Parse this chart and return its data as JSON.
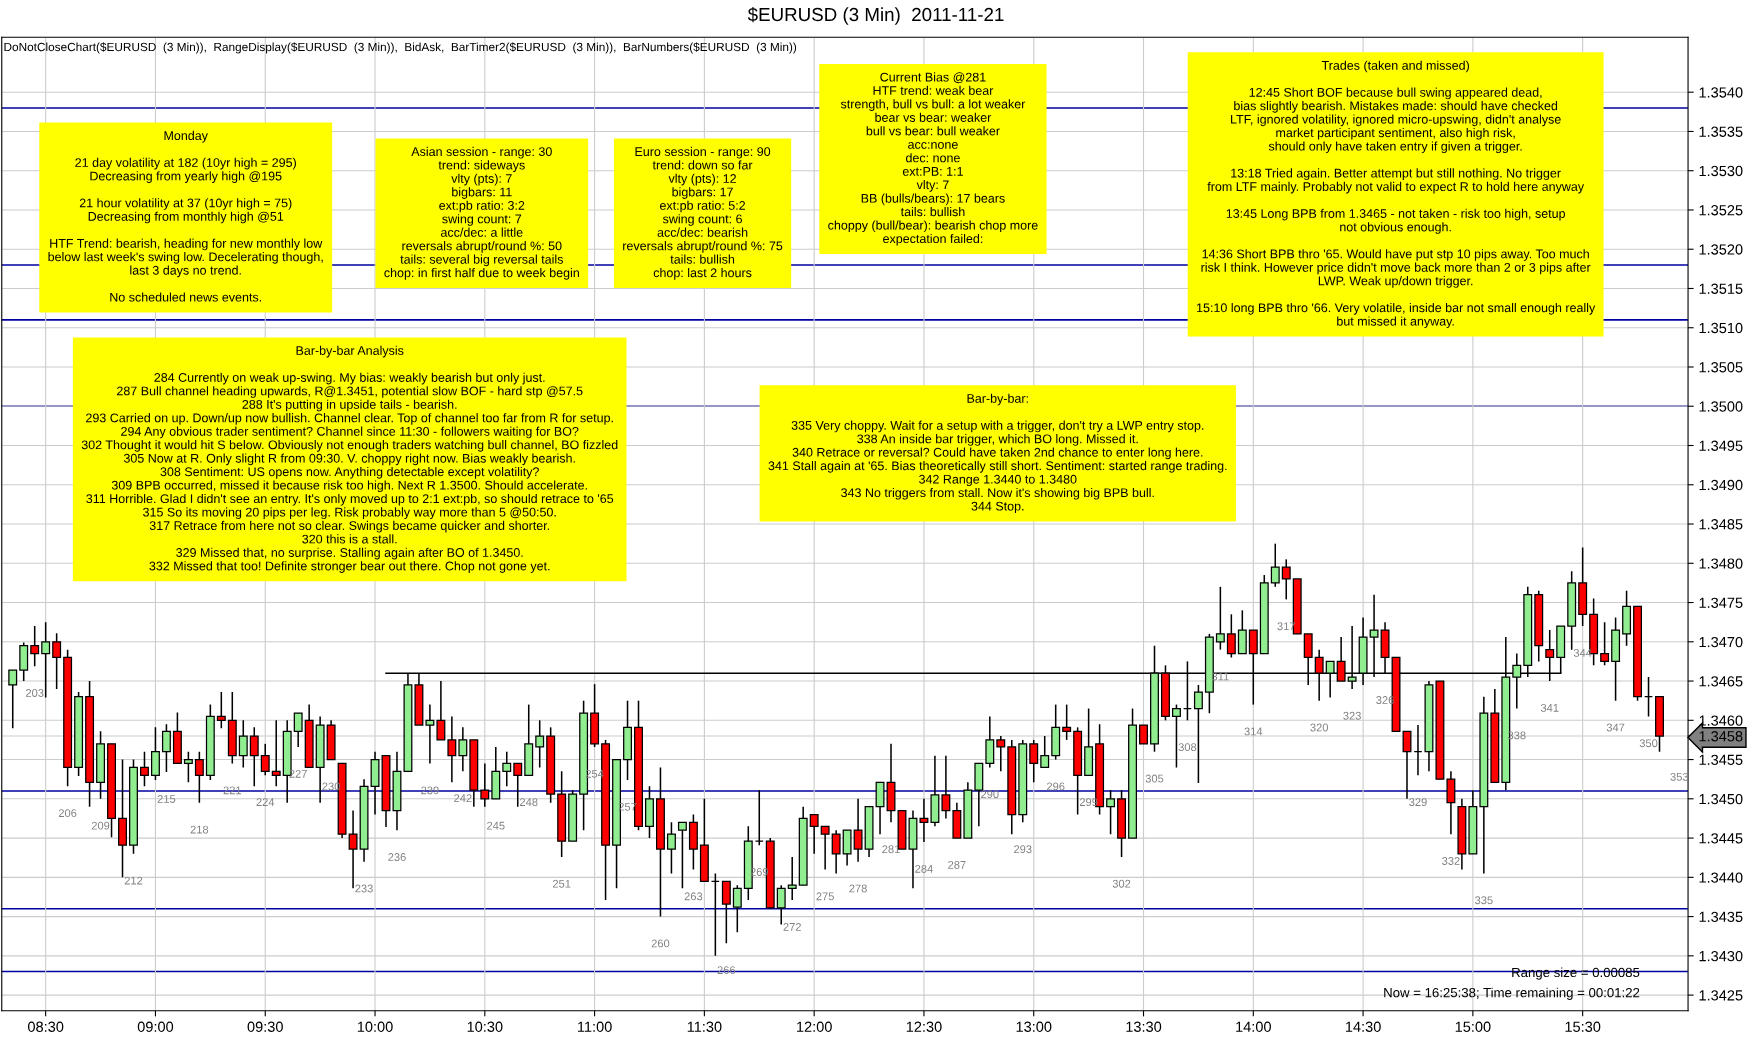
{
  "chart_data": {
    "type": "candlestick",
    "title": "$EURUSD (3 Min)  2011-11-21",
    "xlim": [
      8.3,
      15.98
    ],
    "ylim": [
      1.3423,
      1.3547
    ],
    "grid": true,
    "legend": false,
    "xticks": [
      {
        "value": 8.5,
        "label": "08:30"
      },
      {
        "value": 9.0,
        "label": "09:00"
      },
      {
        "value": 9.5,
        "label": "09:30"
      },
      {
        "value": 10.0,
        "label": "10:00"
      },
      {
        "value": 10.5,
        "label": "10:30"
      },
      {
        "value": 11.0,
        "label": "11:00"
      },
      {
        "value": 11.5,
        "label": "11:30"
      },
      {
        "value": 12.0,
        "label": "12:00"
      },
      {
        "value": 12.5,
        "label": "12:30"
      },
      {
        "value": 13.0,
        "label": "13:00"
      },
      {
        "value": 13.5,
        "label": "13:30"
      },
      {
        "value": 14.0,
        "label": "14:00"
      },
      {
        "value": 14.5,
        "label": "14:30"
      },
      {
        "value": 15.0,
        "label": "15:00"
      },
      {
        "value": 15.5,
        "label": "15:30"
      }
    ],
    "yticks": [
      {
        "value": 1.3425,
        "label": "1.3425"
      },
      {
        "value": 1.343,
        "label": "1.3430"
      },
      {
        "value": 1.3435,
        "label": "1.3435"
      },
      {
        "value": 1.344,
        "label": "1.3440"
      },
      {
        "value": 1.3445,
        "label": "1.3445"
      },
      {
        "value": 1.345,
        "label": "1.3450"
      },
      {
        "value": 1.3455,
        "label": "1.3455"
      },
      {
        "value": 1.3458,
        "label": "1.3458"
      },
      {
        "value": 1.346,
        "label": "1.3460"
      },
      {
        "value": 1.3465,
        "label": "1.3465"
      },
      {
        "value": 1.347,
        "label": "1.3470"
      },
      {
        "value": 1.3475,
        "label": "1.3475"
      },
      {
        "value": 1.348,
        "label": "1.3480"
      },
      {
        "value": 1.3485,
        "label": "1.3485"
      },
      {
        "value": 1.349,
        "label": "1.3490"
      },
      {
        "value": 1.3495,
        "label": "1.3495"
      },
      {
        "value": 1.35,
        "label": "1.3500"
      },
      {
        "value": 1.3505,
        "label": "1.3505"
      },
      {
        "value": 1.351,
        "label": "1.3510"
      },
      {
        "value": 1.3515,
        "label": "1.3515"
      },
      {
        "value": 1.352,
        "label": "1.3520"
      },
      {
        "value": 1.3525,
        "label": "1.3525"
      },
      {
        "value": 1.353,
        "label": "1.3530"
      },
      {
        "value": 1.3535,
        "label": "1.3535"
      },
      {
        "value": 1.354,
        "label": "1.3540"
      }
    ],
    "ref_lines": [
      {
        "axis": "y",
        "value": 1.3538,
        "color": "#0000a0"
      },
      {
        "axis": "y",
        "value": 1.3518,
        "color": "#0000a0"
      },
      {
        "axis": "y",
        "value": 1.3511,
        "color": "#0000a0"
      },
      {
        "axis": "y",
        "value": 1.35,
        "color": "#0000a0"
      },
      {
        "axis": "y",
        "value": 1.3451,
        "color": "#0000a0"
      },
      {
        "axis": "y",
        "value": 1.3436,
        "color": "#0000a0"
      },
      {
        "axis": "y",
        "value": 1.3428,
        "color": "#0000a0"
      }
    ],
    "series": [
      {
        "x": [
          8.35,
          8.4,
          8.45,
          8.5,
          8.55,
          8.6,
          8.65,
          8.7,
          8.75,
          8.8,
          8.85,
          8.9,
          8.95,
          9.0,
          9.05,
          9.1,
          9.15,
          9.2,
          9.25,
          9.3,
          9.35,
          9.4,
          9.45,
          9.5,
          9.55,
          9.6,
          9.65,
          9.7,
          9.75,
          9.8,
          9.85,
          9.9,
          9.95,
          10.0,
          10.05,
          10.1,
          10.15,
          10.2,
          10.25,
          10.3,
          10.35,
          10.4,
          10.45,
          10.5,
          10.55,
          10.6,
          10.65,
          10.7,
          10.75,
          10.8,
          10.85,
          10.9,
          10.95,
          11.0,
          11.05,
          11.1,
          11.15,
          11.2,
          11.25,
          11.3,
          11.35,
          11.4,
          11.45,
          11.5,
          11.55,
          11.6,
          11.65,
          11.7,
          11.75,
          11.8,
          11.85,
          11.9,
          11.95,
          12.0,
          12.05,
          12.1,
          12.15,
          12.2,
          12.25,
          12.3,
          12.35,
          12.4,
          12.45,
          12.5,
          12.55,
          12.6,
          12.65,
          12.7,
          12.75,
          12.8,
          12.85,
          12.9,
          12.95,
          13.0,
          13.05,
          13.1,
          13.15,
          13.2,
          13.25,
          13.3,
          13.35,
          13.4,
          13.45,
          13.5,
          13.55,
          13.6,
          13.65,
          13.7,
          13.75,
          13.8,
          13.85,
          13.9,
          13.95,
          14.0,
          14.05,
          14.1,
          14.15,
          14.2,
          14.25,
          14.3,
          14.35,
          14.4,
          14.45,
          14.5,
          14.55,
          14.6,
          14.65,
          14.7,
          14.75,
          14.8,
          14.85,
          14.9,
          14.95,
          15.0,
          15.05,
          15.1,
          15.15,
          15.2,
          15.25,
          15.3,
          15.35,
          15.4,
          15.45,
          15.5,
          15.55,
          15.6,
          15.65,
          15.7,
          15.75,
          15.8,
          15.85
        ],
        "ohlc": [
          [
            1.34645,
            1.34664,
            1.3459,
            1.34664
          ],
          [
            1.34664,
            1.34699,
            1.3465,
            1.34695
          ],
          [
            1.34695,
            1.3472,
            1.34669,
            1.34685
          ],
          [
            1.34685,
            1.34725,
            1.34629,
            1.347
          ],
          [
            1.347,
            1.34711,
            1.3464,
            1.3468
          ],
          [
            1.3468,
            1.3469,
            1.34516,
            1.3454
          ],
          [
            1.3454,
            1.34636,
            1.34529,
            1.3463
          ],
          [
            1.3463,
            1.3465,
            1.3449,
            1.34521
          ],
          [
            1.34521,
            1.34586,
            1.345,
            1.3457
          ],
          [
            1.3457,
            1.3457,
            1.34451,
            1.34475
          ],
          [
            1.34475,
            1.3455,
            1.344,
            1.34441
          ],
          [
            1.34441,
            1.3455,
            1.3443,
            1.3454
          ],
          [
            1.3454,
            1.3456,
            1.34516,
            1.3453
          ],
          [
            1.3453,
            1.34591,
            1.34524,
            1.3456
          ],
          [
            1.3456,
            1.34595,
            1.34534,
            1.34586
          ],
          [
            1.34586,
            1.3461,
            1.34545,
            1.34545
          ],
          [
            1.34545,
            1.3456,
            1.34521,
            1.3455
          ],
          [
            1.3455,
            1.3456,
            1.34495,
            1.3453
          ],
          [
            1.3453,
            1.3462,
            1.34524,
            1.34605
          ],
          [
            1.34605,
            1.34636,
            1.3459,
            1.346
          ],
          [
            1.346,
            1.34636,
            1.34545,
            1.34555
          ],
          [
            1.34555,
            1.346,
            1.3454,
            1.3458
          ],
          [
            1.3458,
            1.34591,
            1.34516,
            1.34555
          ],
          [
            1.34555,
            1.3457,
            1.3453,
            1.34535
          ],
          [
            1.34535,
            1.346,
            1.34516,
            1.3453
          ],
          [
            1.3453,
            1.346,
            1.34495,
            1.34586
          ],
          [
            1.34586,
            1.34609,
            1.34566,
            1.34609
          ],
          [
            1.346,
            1.3462,
            1.3454,
            1.3454
          ],
          [
            1.3454,
            1.34605,
            1.34495,
            1.34594
          ],
          [
            1.34594,
            1.346,
            1.3455,
            1.3455
          ],
          [
            1.34545,
            1.34545,
            1.3445,
            1.34455
          ],
          [
            1.34455,
            1.34485,
            1.34386,
            1.34436
          ],
          [
            1.34436,
            1.34525,
            1.3442,
            1.34516
          ],
          [
            1.34516,
            1.3456,
            1.3448,
            1.3455
          ],
          [
            1.34555,
            1.34555,
            1.34464,
            1.34485
          ],
          [
            1.34485,
            1.3456,
            1.3446,
            1.34535
          ],
          [
            1.34535,
            1.3466,
            1.34535,
            1.34645
          ],
          [
            1.34645,
            1.3466,
            1.34594,
            1.34594
          ],
          [
            1.34594,
            1.3462,
            1.34545,
            1.346
          ],
          [
            1.346,
            1.3465,
            1.34575,
            1.34575
          ],
          [
            1.34575,
            1.34605,
            1.34521,
            1.34555
          ],
          [
            1.34555,
            1.34591,
            1.34535,
            1.34575
          ],
          [
            1.34575,
            1.34575,
            1.3449,
            1.34511
          ],
          [
            1.34511,
            1.34545,
            1.3449,
            1.345
          ],
          [
            1.345,
            1.34566,
            1.345,
            1.34535
          ],
          [
            1.34535,
            1.3456,
            1.34516,
            1.34545
          ],
          [
            1.34545,
            1.34545,
            1.3449,
            1.3453
          ],
          [
            1.3453,
            1.3462,
            1.3453,
            1.3457
          ],
          [
            1.34566,
            1.346,
            1.3454,
            1.3458
          ],
          [
            1.3458,
            1.34591,
            1.34495,
            1.34506
          ],
          [
            1.34506,
            1.34535,
            1.34426,
            1.34446
          ],
          [
            1.34446,
            1.34511,
            1.34446,
            1.34506
          ],
          [
            1.34506,
            1.34625,
            1.3446,
            1.34609
          ],
          [
            1.34609,
            1.34646,
            1.34566,
            1.3457
          ],
          [
            1.3457,
            1.34575,
            1.34371,
            1.34441
          ],
          [
            1.34441,
            1.3455,
            1.34386,
            1.3455
          ],
          [
            1.3455,
            1.34625,
            1.34524,
            1.34591
          ],
          [
            1.34591,
            1.34625,
            1.3446,
            1.34465
          ],
          [
            1.34465,
            1.34516,
            1.3445,
            1.345
          ],
          [
            1.345,
            1.3454,
            1.3435,
            1.34436
          ],
          [
            1.34436,
            1.3447,
            1.34405,
            1.34455
          ],
          [
            1.3446,
            1.3447,
            1.34386,
            1.3447
          ],
          [
            1.3447,
            1.3448,
            1.3441,
            1.34436
          ],
          [
            1.34441,
            1.345,
            1.34395,
            1.34395
          ],
          [
            1.34395,
            1.34405,
            1.343,
            1.34395
          ],
          [
            1.34395,
            1.34395,
            1.34316,
            1.34366
          ],
          [
            1.34362,
            1.3439,
            1.3433,
            1.34386
          ],
          [
            1.34386,
            1.34465,
            1.34371,
            1.34446
          ],
          [
            1.34446,
            1.34511,
            1.34441,
            1.34446
          ],
          [
            1.34446,
            1.3445,
            1.34361,
            1.34361
          ],
          [
            1.34361,
            1.3439,
            1.3434,
            1.34386
          ],
          [
            1.34386,
            1.34426,
            1.34371,
            1.3439
          ],
          [
            1.3439,
            1.3449,
            1.3439,
            1.34475
          ],
          [
            1.3448,
            1.3448,
            1.3443,
            1.34465
          ],
          [
            1.34465,
            1.34465,
            1.3441,
            1.34455
          ],
          [
            1.34455,
            1.3446,
            1.34405,
            1.3443
          ],
          [
            1.3443,
            1.3446,
            1.34415,
            1.3446
          ],
          [
            1.3446,
            1.345,
            1.3442,
            1.34436
          ],
          [
            1.34436,
            1.3449,
            1.34426,
            1.3449
          ],
          [
            1.3449,
            1.34521,
            1.34455,
            1.34521
          ],
          [
            1.34521,
            1.3457,
            1.3447,
            1.34485
          ],
          [
            1.34485,
            1.34485,
            1.34436,
            1.34436
          ],
          [
            1.34436,
            1.34485,
            1.34386,
            1.34475
          ],
          [
            1.34475,
            1.345,
            1.34445,
            1.3447
          ],
          [
            1.3447,
            1.34555,
            1.34465,
            1.34505
          ],
          [
            1.34505,
            1.34555,
            1.34475,
            1.34485
          ],
          [
            1.34485,
            1.34495,
            1.3445,
            1.3445
          ],
          [
            1.3445,
            1.34521,
            1.3445,
            1.34511
          ],
          [
            1.34511,
            1.34545,
            1.34465,
            1.34545
          ],
          [
            1.34545,
            1.34605,
            1.3454,
            1.34575
          ],
          [
            1.34575,
            1.3458,
            1.34535,
            1.34566
          ],
          [
            1.34566,
            1.34575,
            1.34455,
            1.3448
          ],
          [
            1.3448,
            1.34575,
            1.3447,
            1.3457
          ],
          [
            1.3457,
            1.34575,
            1.34521,
            1.34545
          ],
          [
            1.3454,
            1.3458,
            1.3454,
            1.34555
          ],
          [
            1.34555,
            1.3462,
            1.3455,
            1.34591
          ],
          [
            1.34591,
            1.3462,
            1.34575,
            1.34586
          ],
          [
            1.34586,
            1.34591,
            1.3448,
            1.3453
          ],
          [
            1.3453,
            1.34615,
            1.3453,
            1.34566
          ],
          [
            1.3457,
            1.34595,
            1.3448,
            1.3449
          ],
          [
            1.3449,
            1.34511,
            1.34455,
            1.345
          ],
          [
            1.345,
            1.34511,
            1.34426,
            1.3445
          ],
          [
            1.3445,
            1.34615,
            1.3445,
            1.34594
          ],
          [
            1.34594,
            1.34594,
            1.3457,
            1.3457
          ],
          [
            1.3457,
            1.34695,
            1.3456,
            1.3466
          ],
          [
            1.3466,
            1.3467,
            1.346,
            1.34605
          ],
          [
            1.34605,
            1.3462,
            1.3454,
            1.34615
          ],
          [
            1.34615,
            1.34675,
            1.346,
            1.34615
          ],
          [
            1.34615,
            1.34645,
            1.3452,
            1.34636
          ],
          [
            1.34636,
            1.3471,
            1.34609,
            1.34706
          ],
          [
            1.347,
            1.3477,
            1.3469,
            1.3471
          ],
          [
            1.3471,
            1.34735,
            1.3468,
            1.34685
          ],
          [
            1.34685,
            1.3474,
            1.34685,
            1.34715
          ],
          [
            1.34715,
            1.34715,
            1.3462,
            1.34685
          ],
          [
            1.34685,
            1.34785,
            1.34685,
            1.34775
          ],
          [
            1.34775,
            1.34825,
            1.3477,
            1.34795
          ],
          [
            1.34795,
            1.34805,
            1.34754,
            1.3478
          ],
          [
            1.3478,
            1.3478,
            1.3471,
            1.3471
          ],
          [
            1.3471,
            1.3471,
            1.34645,
            1.3468
          ],
          [
            1.3468,
            1.3469,
            1.34625,
            1.3466
          ],
          [
            1.3466,
            1.34675,
            1.34629,
            1.34675
          ],
          [
            1.34675,
            1.34706,
            1.3465,
            1.3465
          ],
          [
            1.3465,
            1.3472,
            1.3464,
            1.34655
          ],
          [
            1.3466,
            1.34731,
            1.34645,
            1.34706
          ],
          [
            1.34706,
            1.3476,
            1.34655,
            1.34715
          ],
          [
            1.34715,
            1.34725,
            1.3466,
            1.3468
          ],
          [
            1.3468,
            1.3468,
            1.34586,
            1.34586
          ],
          [
            1.34586,
            1.34586,
            1.345,
            1.3456
          ],
          [
            1.3456,
            1.34594,
            1.3453,
            1.3456
          ],
          [
            1.3456,
            1.3465,
            1.34535,
            1.34645
          ],
          [
            1.3465,
            1.3465,
            1.34525,
            1.34525
          ],
          [
            1.34525,
            1.34535,
            1.34455,
            1.34495
          ],
          [
            1.3449,
            1.345,
            1.3441,
            1.3443
          ],
          [
            1.3443,
            1.34511,
            1.3443,
            1.3449
          ],
          [
            1.3449,
            1.3463,
            1.34405,
            1.34609
          ],
          [
            1.34609,
            1.3464,
            1.34521,
            1.34521
          ],
          [
            1.34521,
            1.34706,
            1.34511,
            1.34655
          ],
          [
            1.34655,
            1.34685,
            1.34615,
            1.3467
          ],
          [
            1.3467,
            1.3477,
            1.34655,
            1.3476
          ],
          [
            1.3476,
            1.34765,
            1.34675,
            1.34695
          ],
          [
            1.3469,
            1.34715,
            1.3465,
            1.3468
          ],
          [
            1.3468,
            1.3472,
            1.3466,
            1.3472
          ],
          [
            1.3472,
            1.3479,
            1.3469,
            1.34775
          ],
          [
            1.34775,
            1.3482,
            1.3472,
            1.34735
          ],
          [
            1.34735,
            1.34755,
            1.3467,
            1.34685
          ],
          [
            1.34685,
            1.34725,
            1.3467,
            1.34675
          ],
          [
            1.34675,
            1.34731,
            1.34625,
            1.34715
          ],
          [
            1.3471,
            1.34765,
            1.34695,
            1.34745
          ],
          [
            1.34745,
            1.34745,
            1.34625,
            1.3463
          ],
          [
            1.3463,
            1.34655,
            1.34605,
            1.3463
          ],
          [
            1.3463,
            1.3463,
            1.3456,
            1.3458
          ]
        ],
        "colors": [
          "#90ee90",
          "#90ee90",
          "#ff0000",
          "#90ee90",
          "#ff0000",
          "#ff0000",
          "#90ee90",
          "#ff0000",
          "#90ee90",
          "#ff0000",
          "#ff0000",
          "#90ee90",
          "#ff0000",
          "#90ee90",
          "#90ee90",
          "#ff0000",
          "#90ee90",
          "#ff0000",
          "#90ee90",
          "#ff0000",
          "#ff0000",
          "#90ee90",
          "#ff0000",
          "#ff0000",
          "#ff0000",
          "#90ee90",
          "#90ee90",
          "#ff0000",
          "#90ee90",
          "#ff0000",
          "#ff0000",
          "#ff0000",
          "#90ee90",
          "#90ee90",
          "#ff0000",
          "#90ee90",
          "#90ee90",
          "#ff0000",
          "#90ee90",
          "#ff0000",
          "#ff0000",
          "#90ee90",
          "#ff0000",
          "#ff0000",
          "#90ee90",
          "#90ee90",
          "#ff0000",
          "#90ee90",
          "#90ee90",
          "#ff0000",
          "#ff0000",
          "#90ee90",
          "#90ee90",
          "#ff0000",
          "#ff0000",
          "#90ee90",
          "#90ee90",
          "#ff0000",
          "#90ee90",
          "#ff0000",
          "#90ee90",
          "#90ee90",
          "#ff0000",
          "#ff0000",
          "#000000",
          "#ff0000",
          "#90ee90",
          "#90ee90",
          "#000000",
          "#ff0000",
          "#90ee90",
          "#90ee90",
          "#90ee90",
          "#ff0000",
          "#ff0000",
          "#ff0000",
          "#90ee90",
          "#ff0000",
          "#90ee90",
          "#90ee90",
          "#ff0000",
          "#ff0000",
          "#90ee90",
          "#ff0000",
          "#90ee90",
          "#ff0000",
          "#ff0000",
          "#90ee90",
          "#90ee90",
          "#90ee90",
          "#ff0000",
          "#ff0000",
          "#90ee90",
          "#ff0000",
          "#90ee90",
          "#90ee90",
          "#ff0000",
          "#ff0000",
          "#90ee90",
          "#ff0000",
          "#90ee90",
          "#ff0000",
          "#90ee90",
          "#ff0000",
          "#90ee90",
          "#ff0000",
          "#90ee90",
          "#000000",
          "#90ee90",
          "#90ee90",
          "#90ee90",
          "#ff0000",
          "#90ee90",
          "#ff0000",
          "#90ee90",
          "#90ee90",
          "#ff0000",
          "#ff0000",
          "#ff0000",
          "#ff0000",
          "#90ee90",
          "#ff0000",
          "#90ee90",
          "#90ee90",
          "#90ee90",
          "#ff0000",
          "#ff0000",
          "#ff0000",
          "#000000",
          "#90ee90",
          "#ff0000",
          "#ff0000",
          "#ff0000",
          "#90ee90",
          "#90ee90",
          "#ff0000",
          "#90ee90",
          "#90ee90",
          "#90ee90",
          "#ff0000",
          "#ff0000",
          "#90ee90",
          "#90ee90",
          "#ff0000",
          "#ff0000",
          "#ff0000",
          "#90ee90",
          "#90ee90",
          "#ff0000",
          "#000000",
          "#ff0000"
        ]
      },
      {
        "type": "line",
        "color": "#000000",
        "x": [
          10.05,
          15.4
        ],
        "values": [
          1.3466,
          1.3466
        ]
      }
    ],
    "annotations": [
      "DoNotCloseChart($EURUSD  (3 Min)),  RangeDisplay($EURUSD  (3 Min)),  BidAsk,  BarTimer2($EURUSD  (3 Min)),  BarNumbers($EURUSD  (3 Min))",
      "Monday\n\n21 day volatility at 182 (10yr high = 295)\nDecreasing from yearly high @195\n\n21 hour volatility at 37 (10yr high = 75)\nDecreasing from monthly high @51\n\nHTF Trend: bearish, heading for new monthly low\nbelow last week's swing low. Decelerating though,\nlast 3 days no trend.\n\nNo scheduled news events.",
      "Asian session - range: 30\ntrend: sideways\nvlty (pts): 7\nbigbars: 11\next:pb ratio: 3:2\nswing count: 7\nacc/dec: a little\nreversals abrupt/round %: 50\ntails: several big reversal tails\nchop: in first half due to week begin",
      "Euro session - range: 90\ntrend: down so far\nvlty (pts): 12\nbigbars: 17\next:pb ratio: 5:2\nswing count: 6\nacc/dec: bearish\nreversals abrupt/round %: 75\ntails: bullish\nchop: last 2 hours",
      "Current Bias @281\nHTF trend: weak bear\nstrength, bull vs bull: a lot weaker\nbear vs bear: weaker\nbull vs bear: bull weaker\nacc:none\ndec: none\next:PB: 1:1\nvlty: 7\nBB (bulls/bears): 17 bears\ntails: bullish\nchoppy (bull/bear): bearish chop more\nexpectation failed:",
      "Trades (taken and missed)\n\n12:45 Short BOF because bull swing appeared dead,\nbias slightly bearish. Mistakes made: should have checked\nLTF, ignored volatility, ignored micro-upswing, didn't analyse\nmarket participant sentiment, also high risk,\nshould only have taken entry if given a trigger.\n\n13:18 Tried again. Better attempt but still nothing. No trigger\nfrom LTF mainly. Probably not valid to expect R to hold here anyway\n\n13:45 Long BPB from 1.3465 - not taken - risk too high, setup\nnot obvious enough.\n\n14:36 Short BPB thro '65. Would have put stp 10 pips away. Too much\nrisk I think. However price didn't move back more than 2 or 3 pips after\nLWP. Weak up/down trigger.\n\n15:10 long BPB thro '66. Very volatile, inside bar not small enough really\nbut missed it anyway.",
      "Bar-by-bar Analysis\n\n284 Currently on weak up-swing. My bias: weakly bearish but only just.\n287 Bull channel heading upwards, R@1.3451, potential slow BOF - hard stp @57.5\n288 It's putting in upside tails - bearish.\n293 Carried on up. Down/up now bullish. Channel clear. Top of channel too far from R for setup.\n294 Any obvious trader sentiment? Channel since 11:30 - followers waiting for BO?\n302 Thought it would hit S below. Obviously not enough traders watching bull channel, BO fizzled\n305 Now at R. Only slight R from 09:30. V. choppy right now. Bias weakly bearish.\n308 Sentiment: US opens now. Anything detectable except volatility?\n309 BPB occurred, missed it because risk too high. Next R 1.3500. Should accelerate.\n311 Horrible. Glad I didn't see an entry. It's only moved up to 2:1 ext:pb, so should retrace to '65\n315 So its moving 20 pips per leg. Risk probably way more than 5 @50:50.\n317 Retrace from here not so clear. Swings became quicker and shorter.\n320 this is a stall.\n329 Missed that, no surprise. Stalling again after BO of 1.3450.\n332 Missed that too! Definite stronger bear out there. Chop not gone yet.",
      "Bar-by-bar:\n\n335 Very choppy. Wait for a setup with a trigger, don't try a LWP entry stop.\n338 An inside bar trigger, which BO long. Missed it.\n340 Retrace or reversal? Could have taken 2nd chance to enter long here.\n341 Stall again at '65. Bias theoretically still short. Sentiment: started range trading.\n342 Range 1.3440 to 1.3480\n343 No triggers from stall. Now it's showing big BPB bull.\n344 Stop.",
      "Range size = 0.00085",
      "Now = 16:25:38; Time remaining = 00:01:22",
      "353",
      {
        "text": "203",
        "x": 8.45,
        "y": 1.34669
      },
      {
        "text": "206",
        "x": 8.6,
        "y": 1.34516
      },
      {
        "text": "209",
        "x": 8.75,
        "y": 1.345
      },
      {
        "text": "212",
        "x": 8.9,
        "y": 1.3443
      },
      {
        "text": "215",
        "x": 9.05,
        "y": 1.34534
      },
      {
        "text": "218",
        "x": 9.2,
        "y": 1.34495
      },
      {
        "text": "221",
        "x": 9.35,
        "y": 1.34545
      },
      {
        "text": "224",
        "x": 9.5,
        "y": 1.3453
      },
      {
        "text": "227",
        "x": 9.65,
        "y": 1.34566
      },
      {
        "text": "230",
        "x": 9.8,
        "y": 1.3455
      },
      {
        "text": "233",
        "x": 9.95,
        "y": 1.3442
      },
      {
        "text": "236",
        "x": 10.1,
        "y": 1.3446
      },
      {
        "text": "239",
        "x": 10.25,
        "y": 1.34545
      },
      {
        "text": "242",
        "x": 10.4,
        "y": 1.34535
      },
      {
        "text": "245",
        "x": 10.55,
        "y": 1.345
      },
      {
        "text": "248",
        "x": 10.7,
        "y": 1.3453
      },
      {
        "text": "251",
        "x": 10.85,
        "y": 1.34426
      },
      {
        "text": "254",
        "x": 11.0,
        "y": 1.34566
      },
      {
        "text": "257",
        "x": 11.15,
        "y": 1.34524
      },
      {
        "text": "260",
        "x": 11.3,
        "y": 1.3435
      },
      {
        "text": "263",
        "x": 11.45,
        "y": 1.3441
      },
      {
        "text": "266",
        "x": 11.6,
        "y": 1.34316
      },
      {
        "text": "269",
        "x": 11.75,
        "y": 1.34441
      },
      {
        "text": "272",
        "x": 11.9,
        "y": 1.34371
      },
      {
        "text": "275",
        "x": 12.05,
        "y": 1.3441
      },
      {
        "text": "278",
        "x": 12.2,
        "y": 1.3442
      },
      {
        "text": "281",
        "x": 12.35,
        "y": 1.3447
      },
      {
        "text": "284",
        "x": 12.5,
        "y": 1.34445
      },
      {
        "text": "287",
        "x": 12.65,
        "y": 1.3445
      },
      {
        "text": "290",
        "x": 12.8,
        "y": 1.3454
      },
      {
        "text": "293",
        "x": 12.95,
        "y": 1.3447
      },
      {
        "text": "296",
        "x": 13.1,
        "y": 1.3455
      },
      {
        "text": "299",
        "x": 13.25,
        "y": 1.3453
      },
      {
        "text": "302",
        "x": 13.4,
        "y": 1.34426
      },
      {
        "text": "305",
        "x": 13.55,
        "y": 1.3456
      },
      {
        "text": "308",
        "x": 13.7,
        "y": 1.346
      },
      {
        "text": "311",
        "x": 13.85,
        "y": 1.3469
      },
      {
        "text": "314",
        "x": 14.0,
        "y": 1.3462
      },
      {
        "text": "317",
        "x": 14.15,
        "y": 1.34754
      },
      {
        "text": "320",
        "x": 14.3,
        "y": 1.34625
      },
      {
        "text": "323",
        "x": 14.45,
        "y": 1.3464
      },
      {
        "text": "326",
        "x": 14.6,
        "y": 1.3466
      },
      {
        "text": "329",
        "x": 14.75,
        "y": 1.3453
      },
      {
        "text": "332",
        "x": 14.9,
        "y": 1.34455
      },
      {
        "text": "335",
        "x": 15.05,
        "y": 1.34405
      },
      {
        "text": "338",
        "x": 15.2,
        "y": 1.34615
      },
      {
        "text": "341",
        "x": 15.35,
        "y": 1.3465
      },
      {
        "text": "344",
        "x": 15.5,
        "y": 1.3472
      },
      {
        "text": "347",
        "x": 15.65,
        "y": 1.34625
      },
      {
        "text": "350",
        "x": 15.8,
        "y": 1.34605
      }
    ]
  }
}
